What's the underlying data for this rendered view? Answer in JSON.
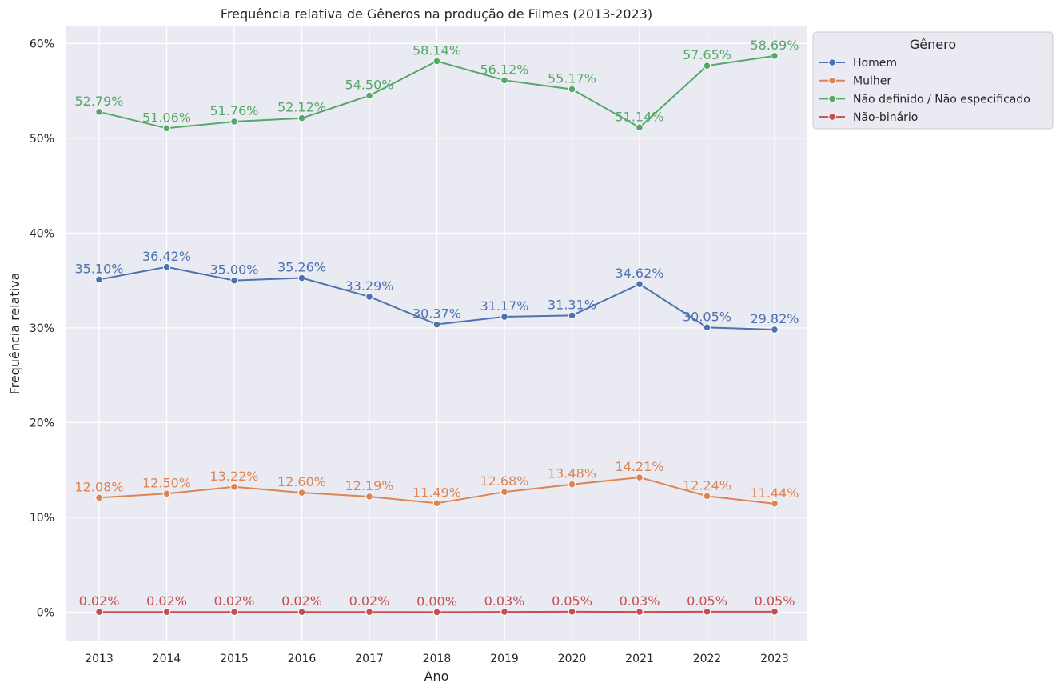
{
  "chart_data": {
    "type": "line",
    "title": "Frequência relativa de Gêneros na produção de Filmes (2013-2023)",
    "xlabel": "Ano",
    "ylabel": "Frequência relativa",
    "x": [
      2013,
      2014,
      2015,
      2016,
      2017,
      2018,
      2019,
      2020,
      2021,
      2022,
      2023
    ],
    "ylim": [
      -3,
      61.8
    ],
    "yticks": [
      0,
      10,
      20,
      30,
      40,
      50,
      60
    ],
    "ytick_labels": [
      "0%",
      "10%",
      "20%",
      "30%",
      "40%",
      "50%",
      "60%"
    ],
    "grid": true,
    "legend": {
      "title": "Gênero",
      "placement": "outside top-right"
    },
    "series": [
      {
        "name": "Homem",
        "color": "#4c72b0",
        "values": [
          35.1,
          36.42,
          35.0,
          35.26,
          33.29,
          30.37,
          31.17,
          31.31,
          34.62,
          30.05,
          29.82
        ],
        "labels": [
          "35.10%",
          "36.42%",
          "35.00%",
          "35.26%",
          "33.29%",
          "30.37%",
          "31.17%",
          "31.31%",
          "34.62%",
          "30.05%",
          "29.82%"
        ]
      },
      {
        "name": "Mulher",
        "color": "#dd8452",
        "values": [
          12.08,
          12.5,
          13.22,
          12.6,
          12.19,
          11.49,
          12.68,
          13.48,
          14.21,
          12.24,
          11.44
        ],
        "labels": [
          "12.08%",
          "12.50%",
          "13.22%",
          "12.60%",
          "12.19%",
          "11.49%",
          "12.68%",
          "13.48%",
          "14.21%",
          "12.24%",
          "11.44%"
        ]
      },
      {
        "name": "Não definido / Não especificado",
        "color": "#55a868",
        "values": [
          52.79,
          51.06,
          51.76,
          52.12,
          54.5,
          58.14,
          56.12,
          55.17,
          51.14,
          57.65,
          58.69
        ],
        "labels": [
          "52.79%",
          "51.06%",
          "51.76%",
          "52.12%",
          "54.50%",
          "58.14%",
          "56.12%",
          "55.17%",
          "51.14%",
          "57.65%",
          "58.69%"
        ]
      },
      {
        "name": "Não-binário",
        "color": "#c44e52",
        "values": [
          0.02,
          0.02,
          0.02,
          0.02,
          0.02,
          0.0,
          0.03,
          0.05,
          0.03,
          0.05,
          0.05
        ],
        "labels": [
          "0.02%",
          "0.02%",
          "0.02%",
          "0.02%",
          "0.02%",
          "0.00%",
          "0.03%",
          "0.05%",
          "0.03%",
          "0.05%",
          "0.05%"
        ]
      }
    ]
  }
}
